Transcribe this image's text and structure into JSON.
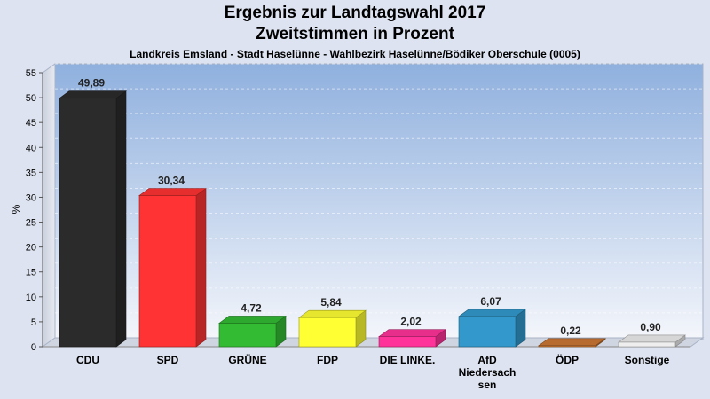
{
  "chart_data": {
    "type": "bar",
    "title": "Ergebnis zur Landtagswahl 2017",
    "subtitle": "Zweitstimmen in Prozent",
    "subsubtitle": "Landkreis Emsland - Stadt Haselünne - Wahlbezirk Haselünne/Bödiker Oberschule (0005)",
    "ylabel": "%",
    "ylim": [
      0,
      55
    ],
    "yticks": [
      0,
      5,
      10,
      15,
      20,
      25,
      30,
      35,
      40,
      45,
      50,
      55
    ],
    "categories": [
      "CDU",
      "SPD",
      "GRÜNE",
      "FDP",
      "DIE LINKE.",
      "AfD Niedersachsen",
      "ÖDP",
      "Sonstige"
    ],
    "category_label_lines": [
      [
        "CDU"
      ],
      [
        "SPD"
      ],
      [
        "GRÜNE"
      ],
      [
        "FDP"
      ],
      [
        "DIE LINKE."
      ],
      [
        "AfD",
        "Niedersach",
        "sen"
      ],
      [
        "ÖDP"
      ],
      [
        "Sonstige"
      ]
    ],
    "values": [
      49.89,
      30.34,
      4.72,
      5.84,
      2.02,
      6.07,
      0.22,
      0.9
    ],
    "value_labels": [
      "49,89",
      "30,34",
      "4,72",
      "5,84",
      "2,02",
      "6,07",
      "0,22",
      "0,90"
    ],
    "colors": [
      "#2b2b2b",
      "#ff3333",
      "#33bb33",
      "#ffff33",
      "#ff3399",
      "#3399cc",
      "#cc7733",
      "#eeeeee"
    ],
    "grid": true,
    "legend": "none"
  }
}
